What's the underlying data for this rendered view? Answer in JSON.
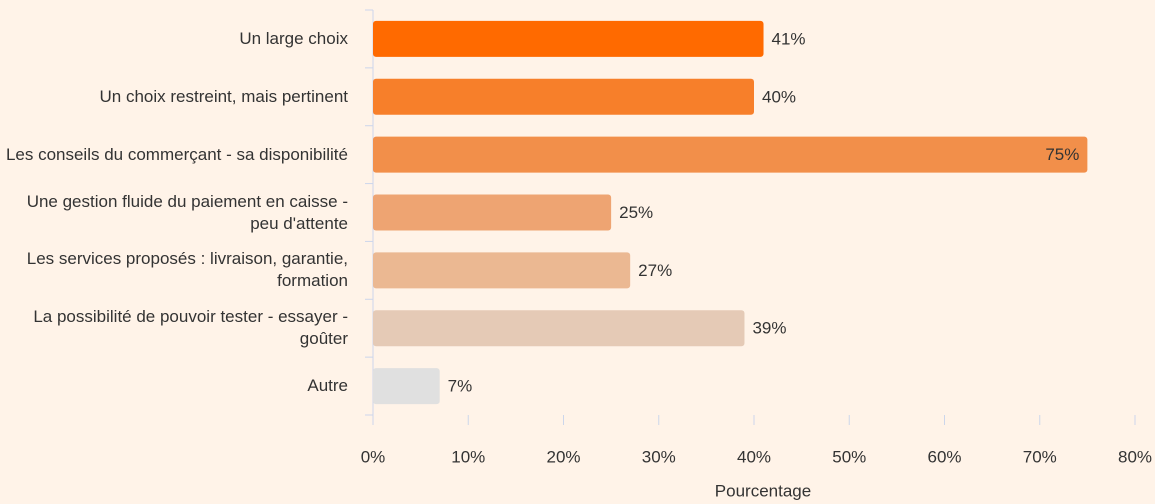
{
  "chart_data": {
    "type": "barh",
    "categories": [
      "Un large choix",
      "Un choix restreint, mais pertinent",
      "Les conseils du commerçant - sa disponibilité",
      "Une gestion fluide du paiement en caisse - peu d'attente",
      "Les services proposés : livraison, garantie, formation",
      "La possibilité de pouvoir tester - essayer - goûter",
      "Autre"
    ],
    "values": [
      41,
      40,
      75,
      25,
      27,
      39,
      7
    ],
    "value_labels": [
      "41%",
      "40%",
      "75%",
      "25%",
      "27%",
      "39%",
      "7%"
    ],
    "colors": [
      "#ff6a00",
      "#f77f2a",
      "#f28f4a",
      "#eea472",
      "#ebb892",
      "#e5cab6",
      "#e0e0e0"
    ],
    "xlabel": "Pourcentage",
    "xlim": [
      0,
      80
    ],
    "xticks": [
      {
        "value": 0,
        "label": "0%"
      },
      {
        "value": 10,
        "label": "10%"
      },
      {
        "value": 20,
        "label": "20%"
      },
      {
        "value": 30,
        "label": "30%"
      },
      {
        "value": 40,
        "label": "40%"
      },
      {
        "value": 50,
        "label": "50%"
      },
      {
        "value": 60,
        "label": "60%"
      },
      {
        "value": 70,
        "label": "70%"
      },
      {
        "value": 80,
        "label": "80%"
      }
    ],
    "grid": false
  }
}
